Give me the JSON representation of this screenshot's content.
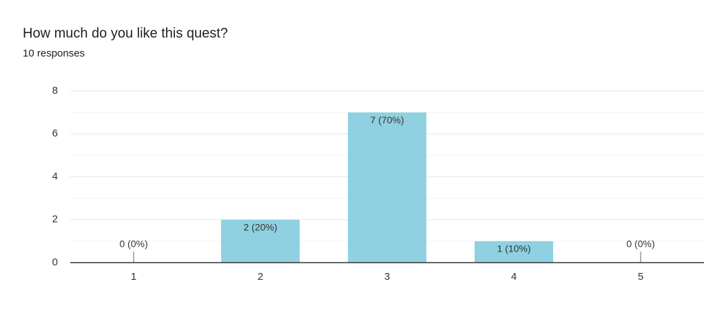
{
  "chart_data": {
    "type": "bar",
    "title": "How much do you like this quest?",
    "subtitle": "10 responses",
    "categories": [
      "1",
      "2",
      "3",
      "4",
      "5"
    ],
    "values": [
      0,
      2,
      7,
      1,
      0
    ],
    "value_labels": [
      "0 (0%)",
      "2 (20%)",
      "7 (70%)",
      "1 (10%)",
      "0 (0%)"
    ],
    "color": "#8fd1e0",
    "ylim": [
      0,
      8
    ],
    "yticks": [
      0,
      2,
      4,
      6,
      8
    ],
    "minor_yticks": [
      1,
      3,
      5,
      7
    ],
    "grid": true
  }
}
